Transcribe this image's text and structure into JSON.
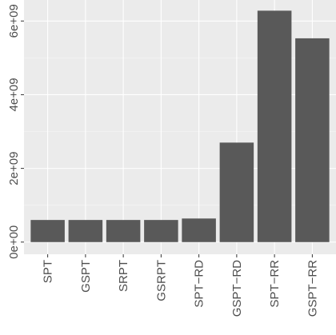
{
  "chart_data": {
    "type": "bar",
    "title": "",
    "xlabel": "",
    "ylabel": "",
    "categories": [
      "SPT",
      "GSPT",
      "SRPT",
      "GSRPT",
      "SPT−RD",
      "GSPT−RD",
      "SPT−RR",
      "GSPT−RR"
    ],
    "values": [
      600000000,
      600000000,
      600000000,
      600000000,
      640000000,
      2700000000,
      6280000000,
      5530000000
    ],
    "ylim": [
      -330000000,
      6570000000
    ],
    "y_ticks": [
      0,
      2000000000,
      4000000000,
      6000000000
    ],
    "y_tick_labels": [
      "0e+00",
      "2e+09",
      "4e+09",
      "6e+09"
    ],
    "grid": true,
    "colors": {
      "bar": "#595959",
      "panel": "#ebebeb",
      "grid_major": "#ffffff",
      "grid_minor": "#f5f5f5",
      "text": "#4d4d4d",
      "tick": "#333333"
    }
  }
}
